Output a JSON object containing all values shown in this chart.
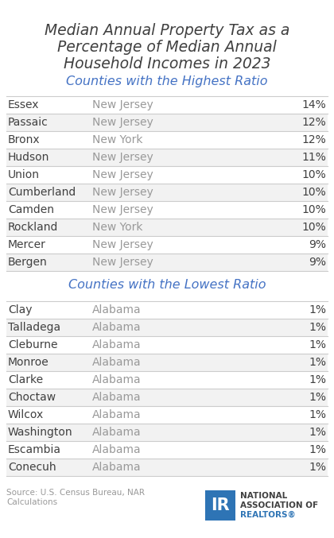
{
  "title_line1": "Median Annual Property Tax as a",
  "title_line2": "Percentage of Median Annual",
  "title_line3": "Household Incomes in 2023",
  "subtitle_high": "Counties with the Highest Ratio",
  "subtitle_low": "Counties with the Lowest Ratio",
  "high_data": [
    [
      "Essex",
      "New Jersey",
      "14%"
    ],
    [
      "Passaic",
      "New Jersey",
      "12%"
    ],
    [
      "Bronx",
      "New York",
      "12%"
    ],
    [
      "Hudson",
      "New Jersey",
      "11%"
    ],
    [
      "Union",
      "New Jersey",
      "10%"
    ],
    [
      "Cumberland",
      "New Jersey",
      "10%"
    ],
    [
      "Camden",
      "New Jersey",
      "10%"
    ],
    [
      "Rockland",
      "New York",
      "10%"
    ],
    [
      "Mercer",
      "New Jersey",
      "9%"
    ],
    [
      "Bergen",
      "New Jersey",
      "9%"
    ]
  ],
  "low_data": [
    [
      "Clay",
      "Alabama",
      "1%"
    ],
    [
      "Talladega",
      "Alabama",
      "1%"
    ],
    [
      "Cleburne",
      "Alabama",
      "1%"
    ],
    [
      "Monroe",
      "Alabama",
      "1%"
    ],
    [
      "Clarke",
      "Alabama",
      "1%"
    ],
    [
      "Choctaw",
      "Alabama",
      "1%"
    ],
    [
      "Wilcox",
      "Alabama",
      "1%"
    ],
    [
      "Washington",
      "Alabama",
      "1%"
    ],
    [
      "Escambia",
      "Alabama",
      "1%"
    ],
    [
      "Conecuh",
      "Alabama",
      "1%"
    ]
  ],
  "source_text": "Source: U.S. Census Bureau, NAR\nCalculations",
  "title_color": "#404040",
  "subtitle_color": "#4472C4",
  "county_color": "#404040",
  "state_color": "#999999",
  "value_color": "#404040",
  "row_alt_color": "#F2F2F2",
  "row_white_color": "#FFFFFF",
  "line_color": "#CCCCCC",
  "bg_color": "#FFFFFF",
  "nar_logo_color": "#2E74B5",
  "nar_text1": "NATIONAL",
  "nar_text2": "ASSOCIATION OF",
  "nar_text3": "REALTORS®"
}
